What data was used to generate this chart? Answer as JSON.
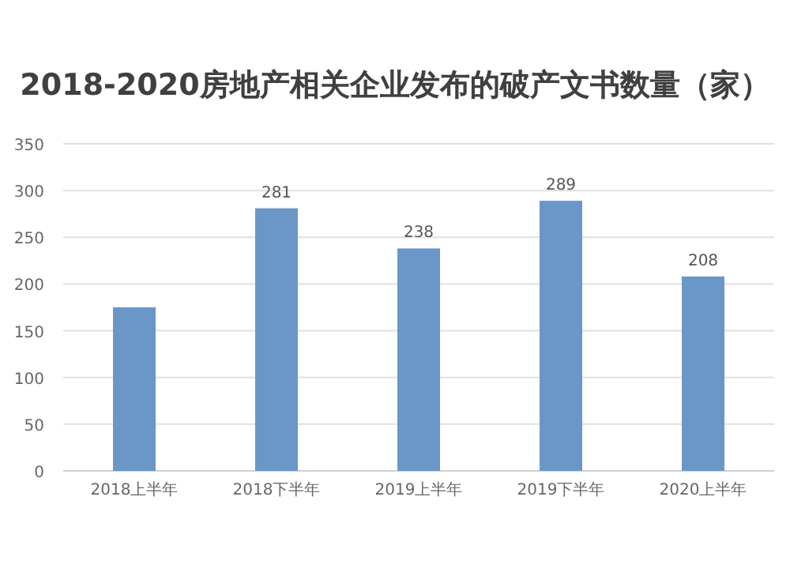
{
  "chart_data": {
    "type": "bar",
    "title": "2018-2020房地产相关企业发布的破产文书数量（家）",
    "categories": [
      "2018上半年",
      "2018下半年",
      "2019上半年",
      "2019下半年",
      "2020上半年"
    ],
    "values": [
      175,
      281,
      238,
      289,
      208
    ],
    "value_labels": [
      null,
      "281",
      "238",
      "289",
      "208"
    ],
    "color": "#6a97c8",
    "ylim": [
      0,
      350
    ],
    "yticks": [
      0,
      50,
      100,
      150,
      200,
      250,
      300,
      350
    ],
    "grid": "y"
  }
}
